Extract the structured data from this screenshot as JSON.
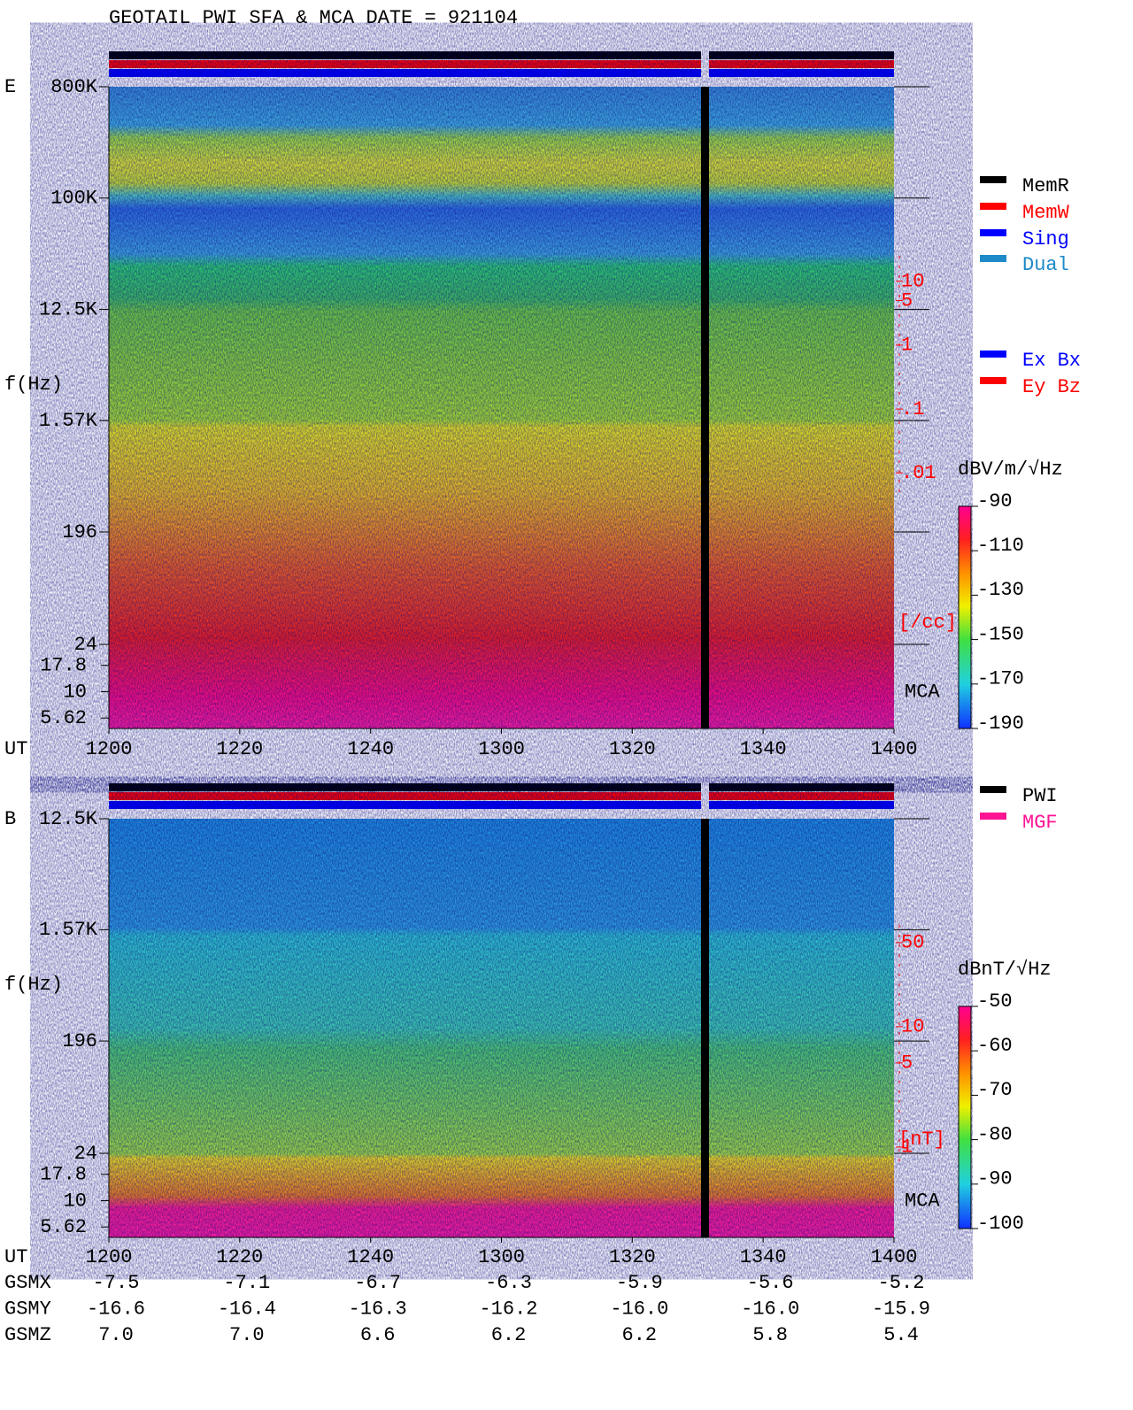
{
  "title": "GEOTAIL  PWI SFA & MCA   DATE = 921104",
  "status_legend": [
    {
      "name": "MemR",
      "color": "#000000"
    },
    {
      "name": "MemW",
      "color": "#ff0000"
    },
    {
      "name": "Sing",
      "color": "#0000ff"
    },
    {
      "name": "Dual",
      "color": "#1e8ac8"
    }
  ],
  "component_legend": [
    {
      "name": "Ex Bx",
      "color": "#0000ff"
    },
    {
      "name": "Ey Bz",
      "color": "#ff0000"
    }
  ],
  "source_legend": [
    {
      "name": "PWI",
      "color": "#000000"
    },
    {
      "name": "MGF",
      "color": "#ff1493"
    }
  ],
  "chart_data": [
    {
      "type": "spectrogram",
      "panel_label": "E",
      "ylabel": "f(Hz)",
      "xlabel": "UT",
      "categories": [
        "1200",
        "1220",
        "1240",
        "1300",
        "1320",
        "1340",
        "1400"
      ],
      "ylog": true,
      "ylim": [
        24,
        800000
      ],
      "yticks": [
        {
          "value": 800000,
          "label": "800K"
        },
        {
          "value": 100000,
          "label": "100K"
        },
        {
          "value": 12500,
          "label": "12.5K"
        },
        {
          "value": 1570,
          "label": "1.57K"
        },
        196,
        24
      ],
      "mca_label": "MCA",
      "mca_ylim": [
        4.47,
        28.2
      ],
      "mca_yticks": [
        17.8,
        10,
        5.62
      ],
      "right_axis": {
        "lim": [
          0.005,
          25
        ],
        "ticks": [
          10,
          5,
          1,
          {
            "value": 0.1,
            "label": ".1"
          },
          {
            "value": 0.01,
            "label": ".01"
          }
        ],
        "unit": "[/cc]",
        "color": "#ff0000"
      },
      "colorbar": {
        "label": "dBV/m/√Hz",
        "lim": [
          -190,
          -90
        ],
        "ticks": [
          -90,
          -110,
          -130,
          -150,
          -170,
          -190
        ]
      }
    },
    {
      "type": "spectrogram",
      "panel_label": "B",
      "ylabel": "f(Hz)",
      "xlabel": "UT",
      "categories": [
        "1200",
        "1220",
        "1240",
        "1300",
        "1320",
        "1340",
        "1400"
      ],
      "ylog": true,
      "ylim": [
        24,
        12500
      ],
      "yticks": [
        {
          "value": 12500,
          "label": "12.5K"
        },
        {
          "value": 1570,
          "label": "1.57K"
        },
        196,
        24
      ],
      "mca_label": "MCA",
      "mca_ylim": [
        4.47,
        28.2
      ],
      "mca_yticks": [
        17.8,
        10,
        5.62
      ],
      "right_axis": {
        "lim": [
          0.7,
          70
        ],
        "ticks": [
          50,
          10,
          5,
          1
        ],
        "unit": "[nT]",
        "color": "#ff0000"
      },
      "colorbar": {
        "label": "dBnT/√Hz",
        "lim": [
          -100,
          -50
        ],
        "ticks": [
          -50,
          -60,
          -70,
          -80,
          -90,
          -100
        ]
      }
    }
  ],
  "positions": [
    {
      "name": "GSMX",
      "values": [
        "-7.5",
        "-7.1",
        "-6.7",
        "-6.3",
        "-5.9",
        "-5.6",
        "-5.2"
      ]
    },
    {
      "name": "GSMY",
      "values": [
        "-16.6",
        "-16.4",
        "-16.3",
        "-16.2",
        "-16.0",
        "-16.0",
        "-15.9"
      ]
    },
    {
      "name": "GSMZ",
      "values": [
        "7.0",
        "7.0",
        "6.6",
        "6.2",
        "6.2",
        "5.8",
        "5.4"
      ]
    }
  ]
}
